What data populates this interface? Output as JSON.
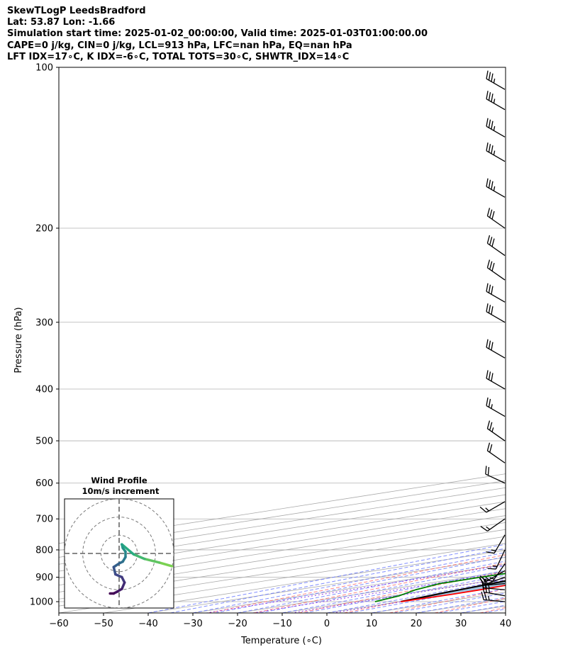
{
  "titles": {
    "line1": "SkewTLogP LeedsBradford",
    "line2": "Lat: 53.87   Lon: -1.66",
    "line3": "Simulation start time: 2025-01-02_00:00:00, Valid time: 2025-01-03T01:00:00.00",
    "line4": "CAPE=0 j/kg, CIN=0 j/kg, LCL=913 hPa, LFC=nan hPa, EQ=nan hPa",
    "line5": "LFT IDX=17∘C, K IDX=-6∘C, TOTAL TOTS=30∘C, SHWTR_IDX=14∘C"
  },
  "chart_data": {
    "type": "line",
    "xlabel": "Temperature (∘C)",
    "ylabel": "Pressure (hPa)",
    "xlim": [
      -60,
      40
    ],
    "ylim": [
      1050,
      100
    ],
    "y_scale": "log",
    "x_ticks": [
      -60,
      -50,
      -40,
      -30,
      -20,
      -10,
      0,
      10,
      20,
      30,
      40
    ],
    "y_ticks": [
      100,
      200,
      300,
      400,
      500,
      600,
      700,
      800,
      900,
      1000
    ],
    "grid": true,
    "colors": {
      "temperature": "#ff0000",
      "dewpoint": "#008000",
      "parcel": "#000000",
      "shade": "#a2c4df",
      "dry_adiabats": "#ff6666",
      "moist_adiabats": "#6070ff",
      "mixing_ratio": "#8a2be2",
      "isotherms": "#aaaaaa"
    },
    "series": [
      {
        "name": "temperature",
        "points": [
          [
            1000,
            0.3
          ],
          [
            970,
            1.2
          ],
          [
            950,
            1.0
          ],
          [
            925,
            0.0
          ],
          [
            900,
            -1.5
          ],
          [
            875,
            -3.0
          ],
          [
            850,
            -4.2
          ],
          [
            800,
            -4.8
          ],
          [
            750,
            -4.5
          ],
          [
            700,
            -4.5
          ],
          [
            650,
            -4.8
          ],
          [
            600,
            -6.0
          ],
          [
            550,
            -8.2
          ],
          [
            500,
            -11.2
          ],
          [
            450,
            -14.8
          ],
          [
            400,
            -19.5
          ],
          [
            350,
            -25.5
          ],
          [
            320,
            -30.0
          ],
          [
            300,
            -33.5
          ],
          [
            280,
            -37.5
          ],
          [
            250,
            -43.5
          ],
          [
            220,
            -49.5
          ],
          [
            200,
            -53.5
          ],
          [
            180,
            -57.0
          ],
          [
            160,
            -61.0
          ],
          [
            150,
            -64.0
          ],
          [
            140,
            -67.0
          ],
          [
            120,
            -72.0
          ],
          [
            100,
            -78.0
          ]
        ]
      },
      {
        "name": "dewpoint",
        "points": [
          [
            1000,
            -5.5
          ],
          [
            975,
            -8.5
          ],
          [
            950,
            -13.5
          ],
          [
            925,
            -17.0
          ],
          [
            900,
            -17.0
          ],
          [
            875,
            -16.5
          ],
          [
            850,
            -16.0
          ],
          [
            800,
            -14.8
          ],
          [
            750,
            -14.5
          ],
          [
            700,
            -15.5
          ],
          [
            650,
            -18.0
          ],
          [
            600,
            -18.5
          ],
          [
            550,
            -18.5
          ],
          [
            500,
            -20.0
          ],
          [
            450,
            -24.0
          ],
          [
            400,
            -29.5
          ],
          [
            350,
            -36.0
          ],
          [
            300,
            -43.0
          ],
          [
            280,
            -47.5
          ],
          [
            250,
            -54.0
          ],
          [
            220,
            -61.0
          ],
          [
            200,
            -65.0
          ],
          [
            180,
            -68.0
          ],
          [
            160,
            -71.0
          ],
          [
            150,
            -72.5
          ],
          [
            140,
            -74.0
          ],
          [
            120,
            -79.5
          ],
          [
            100,
            -84.0
          ]
        ]
      },
      {
        "name": "parcel",
        "points": [
          [
            1000,
            0.3
          ],
          [
            960,
            -3.0
          ],
          [
            913,
            -6.2
          ],
          [
            850,
            -8.5
          ],
          [
            800,
            -10.3
          ],
          [
            700,
            -15.0
          ],
          [
            600,
            -21.0
          ],
          [
            500,
            -29.0
          ],
          [
            400,
            -39.8
          ],
          [
            300,
            -53.5
          ],
          [
            250,
            -61.5
          ],
          [
            200,
            -70.0
          ],
          [
            150,
            -80.5
          ],
          [
            100,
            -94.0
          ]
        ]
      }
    ],
    "wind_barbs": [
      {
        "p": 1000,
        "speed": 25,
        "dir": 275
      },
      {
        "p": 975,
        "speed": 25,
        "dir": 280
      },
      {
        "p": 950,
        "speed": 25,
        "dir": 275
      },
      {
        "p": 925,
        "speed": 20,
        "dir": 265
      },
      {
        "p": 900,
        "speed": 15,
        "dir": 250
      },
      {
        "p": 875,
        "speed": 15,
        "dir": 240
      },
      {
        "p": 850,
        "speed": 15,
        "dir": 215
      },
      {
        "p": 800,
        "speed": 15,
        "dir": 205
      },
      {
        "p": 750,
        "speed": 15,
        "dir": 210
      },
      {
        "p": 700,
        "speed": 15,
        "dir": 235
      },
      {
        "p": 650,
        "speed": 15,
        "dir": 240
      },
      {
        "p": 600,
        "speed": 20,
        "dir": 295
      },
      {
        "p": 550,
        "speed": 20,
        "dir": 305
      },
      {
        "p": 500,
        "speed": 25,
        "dir": 305
      },
      {
        "p": 450,
        "speed": 25,
        "dir": 300
      },
      {
        "p": 400,
        "speed": 30,
        "dir": 300
      },
      {
        "p": 350,
        "speed": 30,
        "dir": 300
      },
      {
        "p": 300,
        "speed": 30,
        "dir": 300
      },
      {
        "p": 275,
        "speed": 30,
        "dir": 300
      },
      {
        "p": 250,
        "speed": 30,
        "dir": 305
      },
      {
        "p": 225,
        "speed": 30,
        "dir": 305
      },
      {
        "p": 200,
        "speed": 30,
        "dir": 305
      },
      {
        "p": 175,
        "speed": 35,
        "dir": 300
      },
      {
        "p": 150,
        "speed": 35,
        "dir": 300
      },
      {
        "p": 135,
        "speed": 35,
        "dir": 300
      },
      {
        "p": 120,
        "speed": 35,
        "dir": 300
      },
      {
        "p": 110,
        "speed": 35,
        "dir": 300
      }
    ],
    "hodograph": {
      "title_line1": "Wind Profile",
      "title_line2": "10m/s increment",
      "ring_increment_ms": 10,
      "rings": 3,
      "limit_ms": 30,
      "points": [
        [
          29.0,
          7.0
        ],
        [
          22.0,
          5.0
        ],
        [
          14.0,
          3.0
        ],
        [
          8.0,
          0.5
        ],
        [
          1.5,
          -5.0
        ],
        [
          2.0,
          -3.0
        ],
        [
          3.5,
          -1.0
        ],
        [
          3.5,
          2.0
        ],
        [
          2.0,
          4.5
        ],
        [
          0.0,
          5.5
        ],
        [
          -3.0,
          7.5
        ],
        [
          -2.0,
          11.5
        ],
        [
          1.5,
          13.0
        ],
        [
          3.0,
          16.0
        ],
        [
          1.5,
          19.5
        ],
        [
          -1.0,
          21.0
        ],
        [
          -3.0,
          22.0
        ],
        [
          -5.0,
          22.0
        ]
      ]
    }
  }
}
